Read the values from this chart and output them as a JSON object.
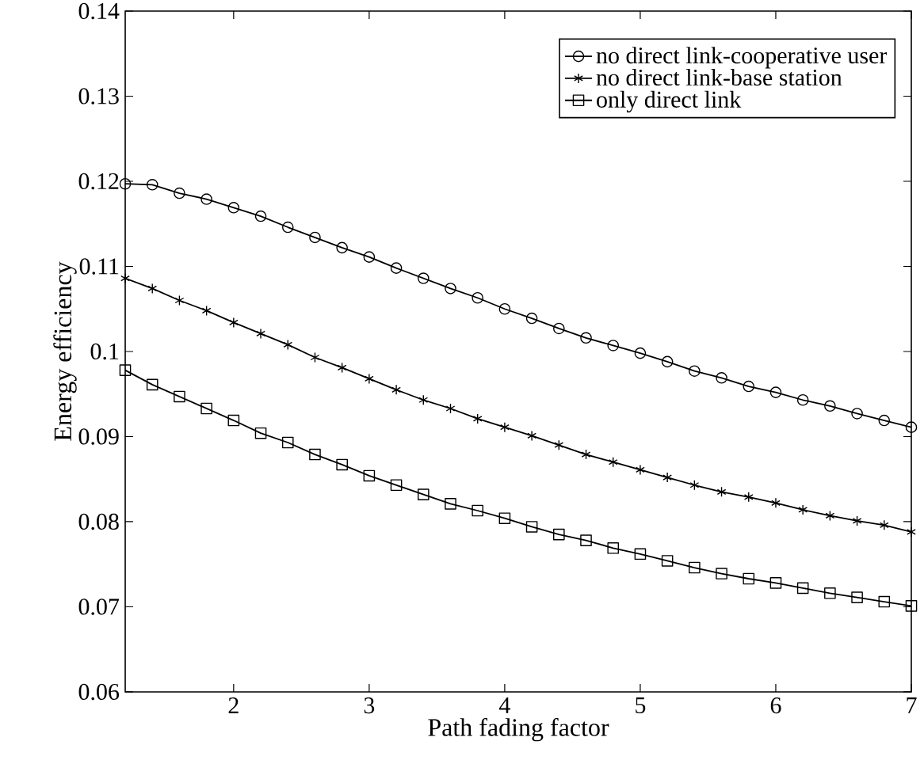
{
  "chart_data": {
    "type": "line",
    "xlabel": "Path fading factor",
    "ylabel": "Energy efficiency",
    "x": [
      1.2,
      1.4,
      1.6,
      1.8,
      2.0,
      2.2,
      2.4,
      2.6,
      2.8,
      3.0,
      3.2,
      3.4,
      3.6,
      3.8,
      4.0,
      4.2,
      4.4,
      4.6,
      4.8,
      5.0,
      5.2,
      5.4,
      5.6,
      5.8,
      6.0,
      6.2,
      6.4,
      6.6,
      6.8,
      7.0
    ],
    "series": [
      {
        "name": "no direct link-cooperative user",
        "color": "#000000",
        "marker": "circle",
        "values": [
          0.1197,
          0.1196,
          0.1186,
          0.1179,
          0.1169,
          0.1159,
          0.1146,
          0.1134,
          0.1122,
          0.1111,
          0.1098,
          0.1086,
          0.1074,
          0.1063,
          0.105,
          0.1039,
          0.1027,
          0.1016,
          0.1007,
          0.0998,
          0.0988,
          0.0977,
          0.0969,
          0.0959,
          0.0952,
          0.0943,
          0.0936,
          0.0927,
          0.0919,
          0.0911
        ]
      },
      {
        "name": "no direct link-base station",
        "color": "#000000",
        "marker": "cross",
        "values": [
          0.1086,
          0.1074,
          0.106,
          0.1048,
          0.1034,
          0.1021,
          0.1008,
          0.0993,
          0.0981,
          0.0968,
          0.0955,
          0.0943,
          0.0933,
          0.0921,
          0.0911,
          0.0901,
          0.089,
          0.0879,
          0.087,
          0.0861,
          0.0852,
          0.0843,
          0.0835,
          0.0829,
          0.0822,
          0.0814,
          0.0807,
          0.0801,
          0.0796,
          0.0788
        ]
      },
      {
        "name": "only direct link",
        "color": "#000000",
        "marker": "square",
        "values": [
          0.0978,
          0.0961,
          0.0947,
          0.0933,
          0.0919,
          0.0904,
          0.0893,
          0.0879,
          0.0867,
          0.0854,
          0.0843,
          0.0832,
          0.0821,
          0.0813,
          0.0804,
          0.0794,
          0.0785,
          0.0778,
          0.0769,
          0.0762,
          0.0754,
          0.0746,
          0.0739,
          0.0733,
          0.0728,
          0.0722,
          0.0716,
          0.0711,
          0.0706,
          0.0701
        ]
      }
    ],
    "xlim": [
      1.2,
      7
    ],
    "xticks": [
      2,
      3,
      4,
      5,
      6,
      7
    ],
    "ylim": [
      0.06,
      0.14
    ],
    "yticks": [
      0.06,
      0.07,
      0.08,
      0.09,
      0.1,
      0.11,
      0.12,
      0.13,
      0.14
    ],
    "legend": "top right",
    "line_style": "solid",
    "grid": false
  }
}
